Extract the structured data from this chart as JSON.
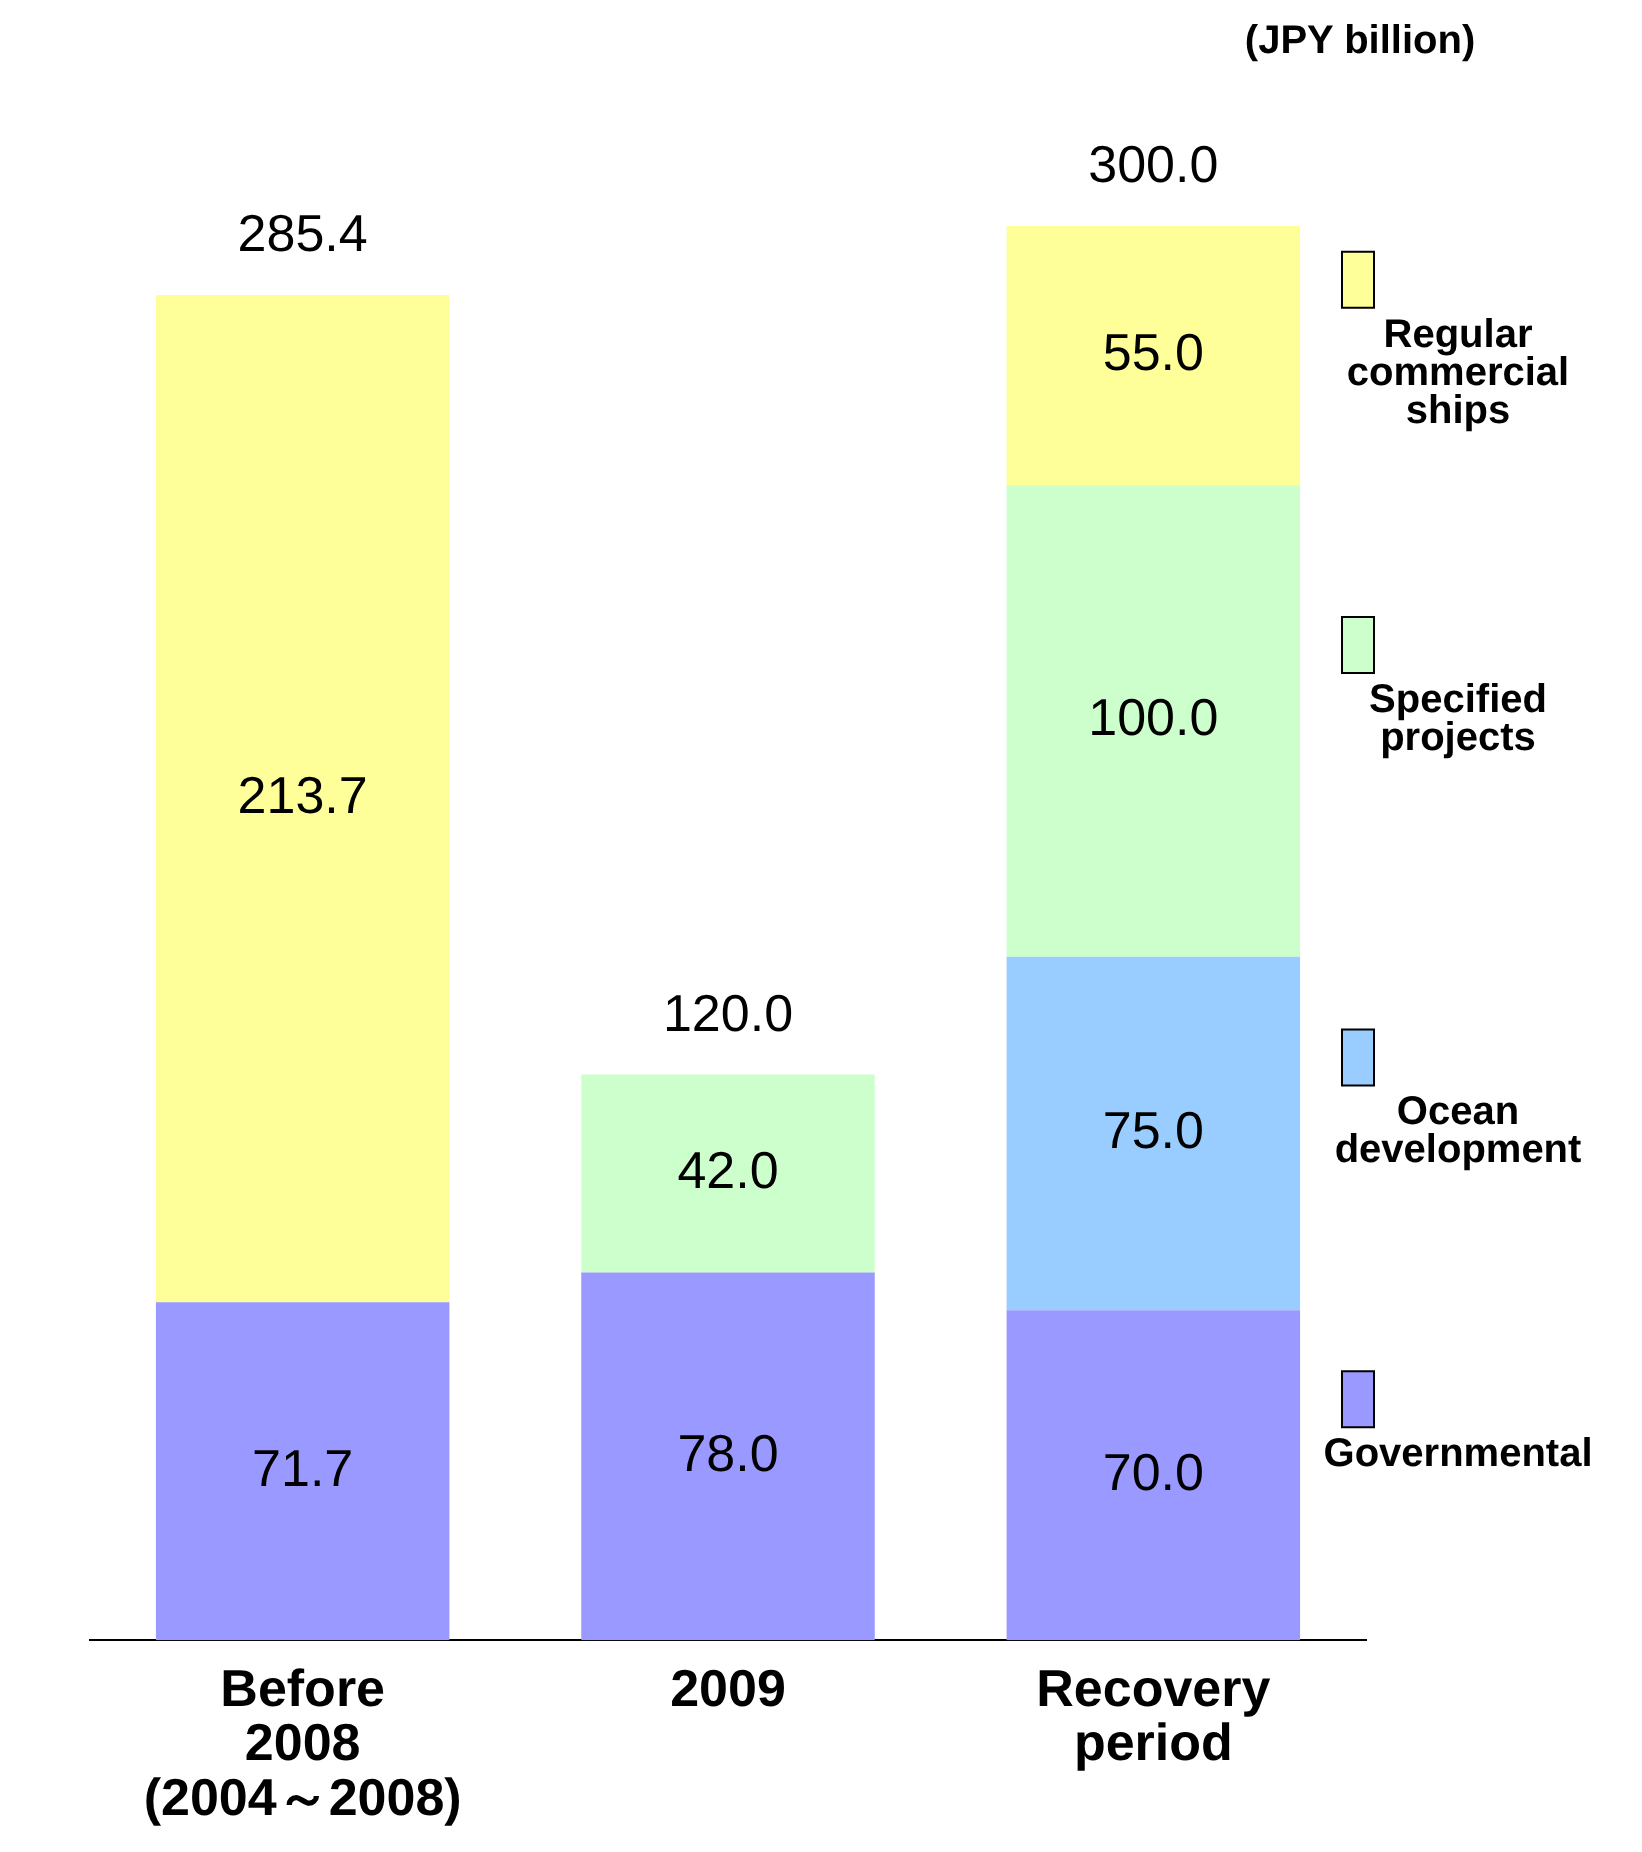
{
  "chart_data": {
    "type": "bar",
    "stacked": true,
    "categories": [
      "Before\n2008\n(2004～2008)",
      "2009",
      "Recovery\nperiod"
    ],
    "series": [
      {
        "name": "Governmental",
        "color": "#9999ff",
        "values": [
          71.7,
          78.0,
          70.0
        ],
        "value_labels": [
          "71.7",
          "78.0",
          "70.0"
        ]
      },
      {
        "name": "Ocean\ndevelopment",
        "color": "#99ccff",
        "values": [
          null,
          null,
          75.0
        ],
        "value_labels": [
          null,
          null,
          "75.0"
        ]
      },
      {
        "name": "Specified\nprojects",
        "color": "#ccffcc",
        "values": [
          null,
          42.0,
          100.0
        ],
        "value_labels": [
          null,
          "42.0",
          "100.0"
        ]
      },
      {
        "name": "Regular\ncommercial\nships",
        "color": "#ffff99",
        "values": [
          213.7,
          null,
          55.0
        ],
        "value_labels": [
          "213.7",
          null,
          "55.0"
        ]
      }
    ],
    "totals": [
      "285.4",
      "120.0",
      "300.0"
    ],
    "annotations": [
      "(JPY billion)"
    ],
    "legend": "right",
    "grid": false
  }
}
